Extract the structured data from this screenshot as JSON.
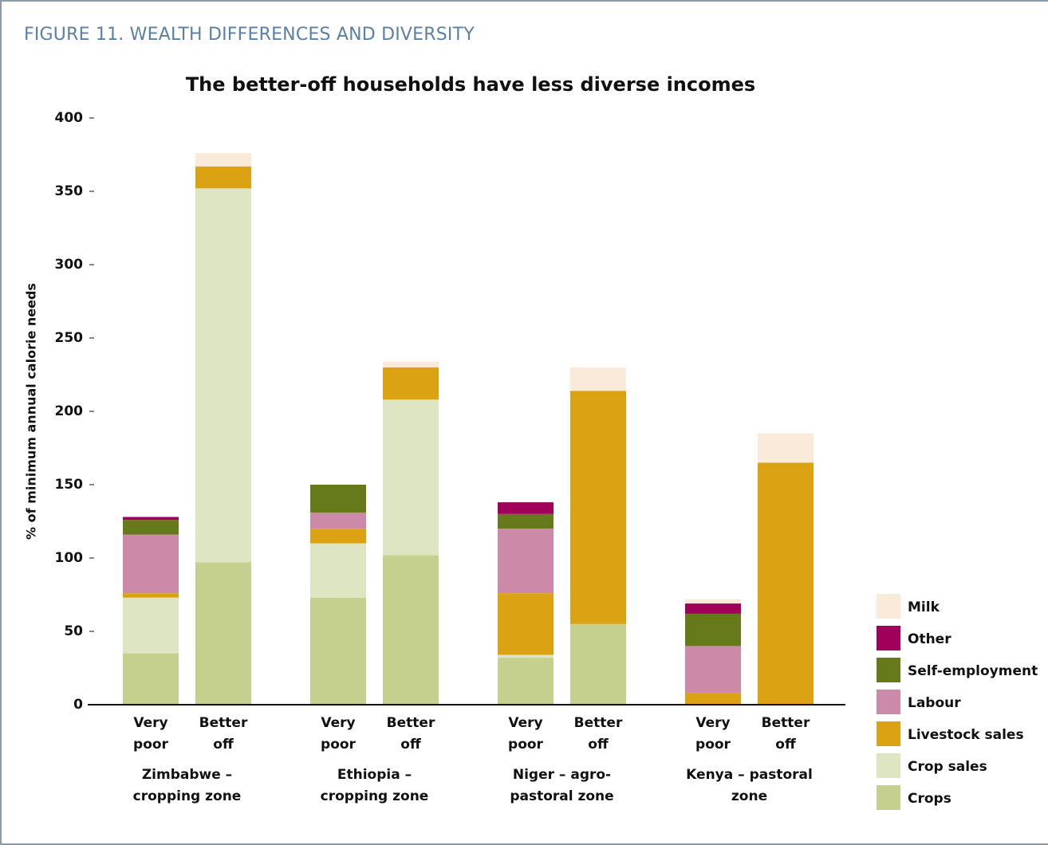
{
  "header": "FIGURE 11. WEALTH DIFFERENCES AND DIVERSITY",
  "chart_data": {
    "type": "stacked_bar",
    "title": "The better-off households have less diverse incomes",
    "ylabel": "% of minimum annual calorie needs",
    "categories": [
      "Very poor",
      "Better off",
      "Very poor",
      "Better off",
      "Very poor",
      "Better off",
      "Very poor",
      "Better off"
    ],
    "groups": [
      "Zimbabwe – cropping zone",
      "Ethiopia – cropping zone",
      "Niger – agro-pastoral zone",
      "Kenya – pastoral zone"
    ],
    "ylim": [
      0,
      400
    ],
    "yticks": [
      0,
      50,
      100,
      150,
      200,
      250,
      300,
      350,
      400
    ],
    "grid": false,
    "legend": "right",
    "series": [
      {
        "name": "Crops",
        "color": "#c5d08e",
        "values": [
          35,
          97,
          73,
          102,
          32,
          55,
          0,
          0
        ]
      },
      {
        "name": "Crop sales",
        "color": "#dde5c3",
        "values": [
          38,
          255,
          37,
          106,
          2,
          0,
          0,
          0
        ]
      },
      {
        "name": "Livestock sales",
        "color": "#dba313",
        "values": [
          3,
          15,
          10,
          22,
          42,
          159,
          8,
          165
        ]
      },
      {
        "name": "Labour",
        "color": "#cc8aa8",
        "values": [
          40,
          0,
          11,
          0,
          44,
          0,
          32,
          0
        ]
      },
      {
        "name": "Self-employment",
        "color": "#667a1c",
        "values": [
          10,
          0,
          19,
          0,
          10,
          0,
          22,
          0
        ]
      },
      {
        "name": "Other",
        "color": "#a0005a",
        "values": [
          2,
          0,
          0,
          0,
          8,
          0,
          7,
          0
        ]
      },
      {
        "name": "Milk",
        "color": "#f9eada",
        "values": [
          0,
          9,
          0,
          4,
          0,
          16,
          3,
          20
        ]
      }
    ]
  }
}
